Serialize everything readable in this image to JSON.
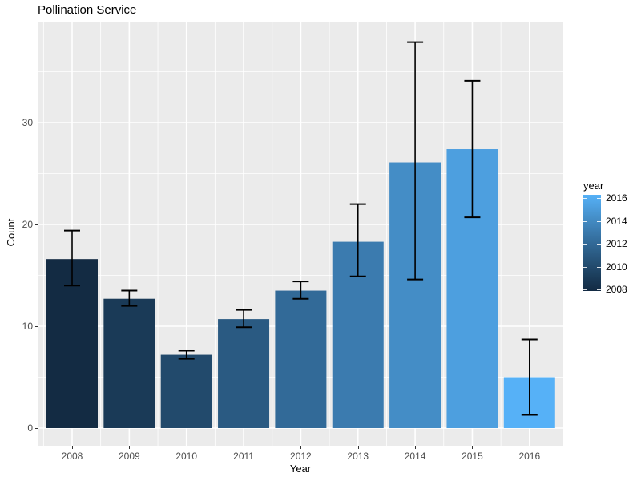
{
  "title": "Pollination Service",
  "axes": {
    "x": {
      "label": "Year",
      "tick_labels": [
        "2008",
        "2009",
        "2010",
        "2011",
        "2012",
        "2013",
        "2014",
        "2015",
        "2016"
      ]
    },
    "y": {
      "label": "Count",
      "tick_labels": [
        "0",
        "10",
        "20",
        "30"
      ],
      "tick_values": [
        0,
        10,
        20,
        30
      ]
    }
  },
  "legend": {
    "title": "year",
    "labels": [
      "2016",
      "2014",
      "2012",
      "2010",
      "2008"
    ],
    "type": "colorbar",
    "position": "right",
    "gradient_top_color": "#56B1F7",
    "gradient_bottom_color": "#132B43"
  },
  "colors": {
    "panel_background": "#EBEBEB",
    "grid_major": "#FFFFFF",
    "grid_minor": "#FFFFFF",
    "tick_label": "#4D4D4D",
    "tick_mark": "#333333",
    "error_bar": "#000000",
    "title_text": "#000000"
  },
  "chart_data": {
    "type": "bar",
    "title": "Pollination Service",
    "xlabel": "Year",
    "ylabel": "Count",
    "categories": [
      2008,
      2009,
      2010,
      2011,
      2012,
      2013,
      2014,
      2015,
      2016
    ],
    "values": [
      16.6,
      12.7,
      7.2,
      10.7,
      13.5,
      18.3,
      26.1,
      27.4,
      5.0
    ],
    "error_low": [
      14.0,
      12.0,
      6.8,
      9.9,
      12.7,
      14.9,
      14.6,
      20.7,
      1.3
    ],
    "error_high": [
      19.4,
      13.5,
      7.6,
      11.6,
      14.4,
      22.0,
      37.9,
      34.1,
      8.7
    ],
    "bar_colors": [
      "#132B43",
      "#1A3A57",
      "#224A6C",
      "#2A5A82",
      "#326A98",
      "#3B7BAF",
      "#448DC6",
      "#4D9FDF",
      "#56B1F7"
    ],
    "ylim": [
      -1.7,
      39.8
    ],
    "y_major_gridlines": [
      0,
      10,
      20,
      30
    ],
    "y_minor_gridlines": [
      5,
      15,
      25,
      35
    ],
    "grid": true,
    "legend": {
      "title": "year",
      "scale": "continuous 2008-2016"
    }
  }
}
